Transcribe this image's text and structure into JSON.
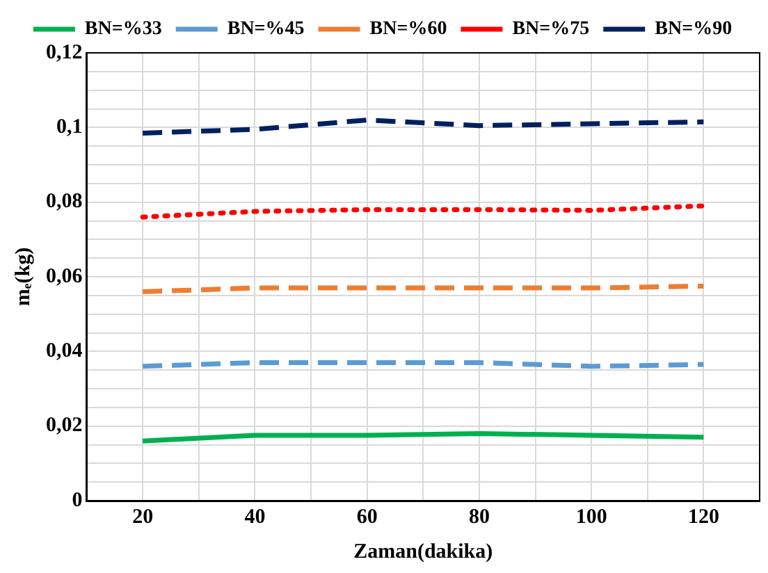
{
  "chart_data": {
    "type": "line",
    "xlabel": "Zaman(dakika)",
    "ylabel": "mₑ(kg)",
    "x": [
      20,
      40,
      60,
      80,
      100,
      120
    ],
    "series": [
      {
        "name": "BN=%33",
        "color": "#00b050",
        "line_style": "solid",
        "values": [
          0.016,
          0.0175,
          0.0175,
          0.018,
          0.0175,
          0.017
        ]
      },
      {
        "name": "BN=%45",
        "color": "#5b9bd5",
        "line_style": "dashed",
        "values": [
          0.036,
          0.037,
          0.037,
          0.037,
          0.036,
          0.0365
        ]
      },
      {
        "name": "BN=%60",
        "color": "#ed7d31",
        "line_style": "dashed",
        "values": [
          0.056,
          0.057,
          0.057,
          0.057,
          0.057,
          0.0575
        ]
      },
      {
        "name": "BN=%75",
        "color": "#ff0000",
        "line_style": "dotted",
        "values": [
          0.076,
          0.0775,
          0.078,
          0.078,
          0.0778,
          0.079
        ]
      },
      {
        "name": "BN=%90",
        "color": "#002060",
        "line_style": "dashed",
        "values": [
          0.0985,
          0.0995,
          0.102,
          0.1005,
          0.101,
          0.1015
        ]
      }
    ],
    "xlim": [
      10,
      130
    ],
    "xticks": [
      20,
      {
        "value": 30,
        "label": null
      },
      40,
      {
        "value": 50,
        "label": null
      },
      60,
      {
        "value": 70,
        "label": null
      },
      80,
      {
        "value": 90,
        "label": null
      },
      100,
      {
        "value": 110,
        "label": null
      },
      120
    ],
    "ylim": [
      0,
      0.12
    ],
    "yticks": [
      {
        "value": 0,
        "label": "0"
      },
      {
        "value": 0.005,
        "label": null
      },
      {
        "value": 0.01,
        "label": null
      },
      {
        "value": 0.015,
        "label": null
      },
      {
        "value": 0.02,
        "label": "0,02"
      },
      {
        "value": 0.025,
        "label": null
      },
      {
        "value": 0.03,
        "label": null
      },
      {
        "value": 0.035,
        "label": null
      },
      {
        "value": 0.04,
        "label": "0,04"
      },
      {
        "value": 0.045,
        "label": null
      },
      {
        "value": 0.05,
        "label": null
      },
      {
        "value": 0.055,
        "label": null
      },
      {
        "value": 0.06,
        "label": "0,06"
      },
      {
        "value": 0.065,
        "label": null
      },
      {
        "value": 0.07,
        "label": null
      },
      {
        "value": 0.075,
        "label": null
      },
      {
        "value": 0.08,
        "label": "0,08"
      },
      {
        "value": 0.085,
        "label": null
      },
      {
        "value": 0.09,
        "label": null
      },
      {
        "value": 0.095,
        "label": null
      },
      {
        "value": 0.1,
        "label": "0,1"
      },
      {
        "value": 0.105,
        "label": null
      },
      {
        "value": 0.11,
        "label": null
      },
      {
        "value": 0.115,
        "label": null
      },
      {
        "value": 0.12,
        "label": "0,12"
      }
    ],
    "grid": true,
    "legend": "top",
    "marker": "none"
  }
}
